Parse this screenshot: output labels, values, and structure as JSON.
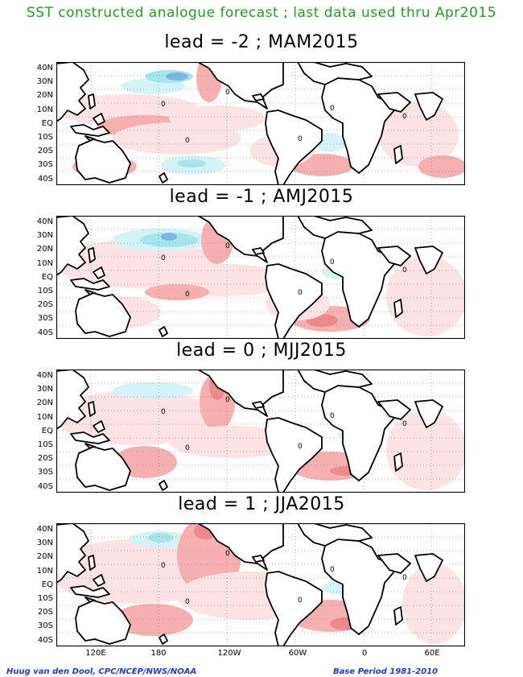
{
  "title": "SST constructed analogue forecast ; last data used thru Apr2015",
  "panels": [
    {
      "label": "lead = -2 ; MAM2015"
    },
    {
      "label": "lead = -1 ; AMJ2015"
    },
    {
      "label": "lead = 0 ; MJJ2015"
    },
    {
      "label": "lead = 1 ; JJA2015"
    }
  ],
  "lat_labels": [
    "40N",
    "30N",
    "20N",
    "10N",
    "EQ",
    "10S",
    "20S",
    "30S",
    "40S"
  ],
  "lon_labels": [
    "120E",
    "180",
    "120W",
    "60W",
    "0",
    "60E"
  ],
  "contour_labels": [
    "0"
  ],
  "credit_left": "Huug van den Dool, CPC/NCEP/NWS/NOAA",
  "credit_right": "Base Period 1981-2010",
  "colors": {
    "title": "#1fa01f",
    "warm_light": "#fde3e3",
    "warm": "#f7b0b0",
    "warm_strong": "#ef8a8a",
    "cool_light": "#d4f3f6",
    "cool": "#a8e6ee",
    "cool_strong": "#7ab8e0",
    "credit": "#1a3cd0"
  }
}
